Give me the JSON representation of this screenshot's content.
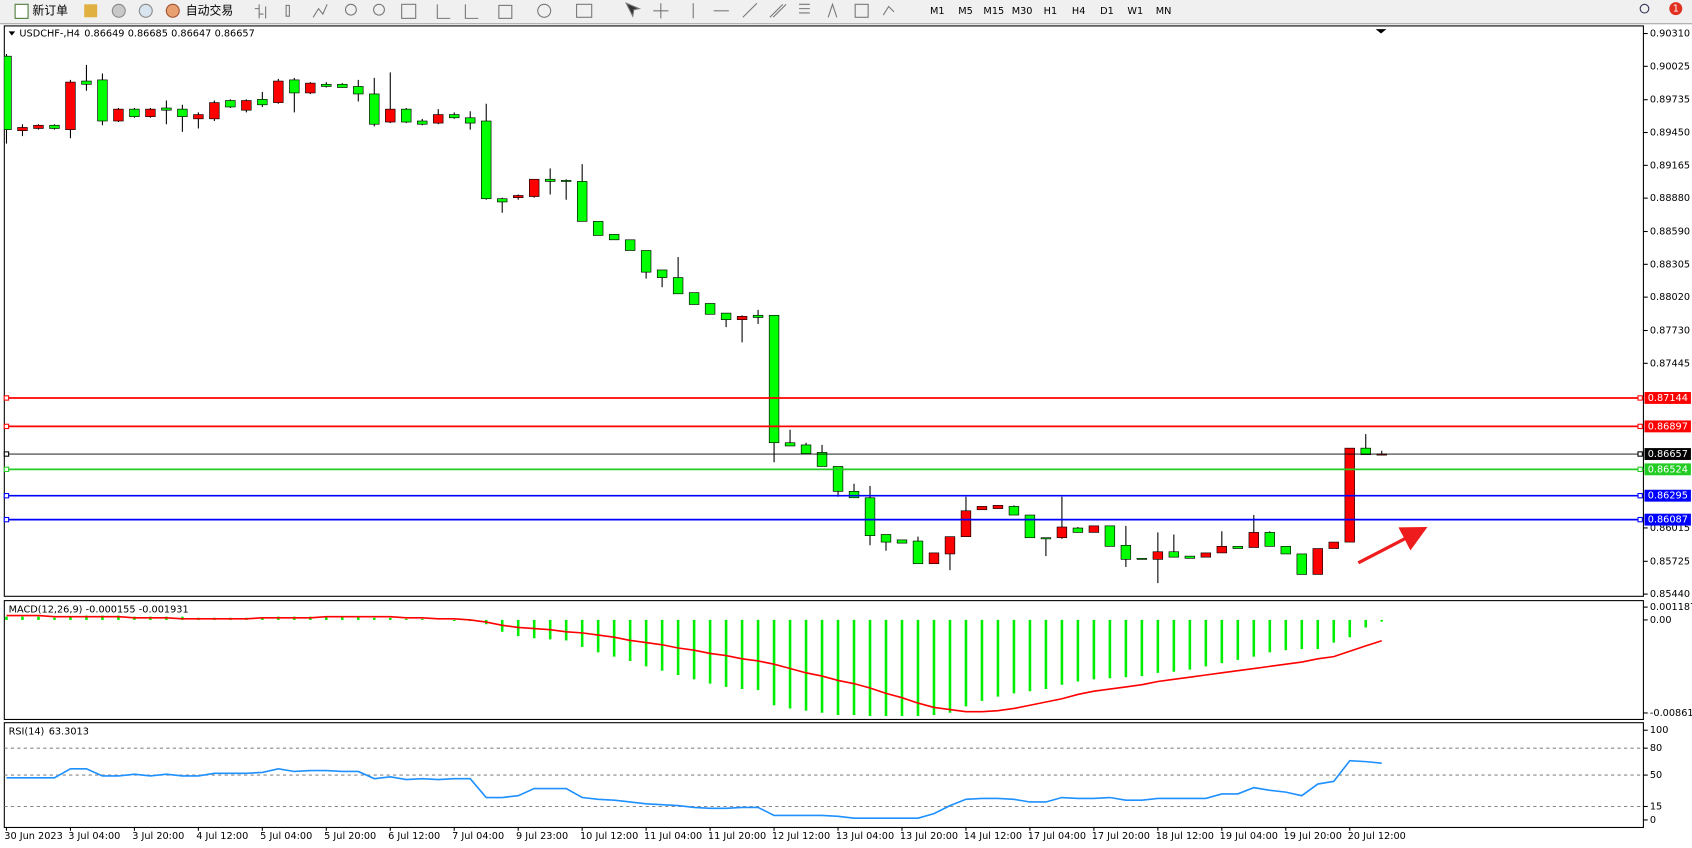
{
  "toolbar": {
    "new_order": "新订单",
    "auto_trading": "自动交易",
    "timeframes": [
      "M1",
      "M5",
      "M15",
      "M30",
      "H1",
      "H4",
      "D1",
      "W1",
      "MN"
    ],
    "notification": "1"
  },
  "chart_data": [
    {
      "type": "candlestick",
      "title": "USDCHF-,H4",
      "up_color": "#ff0000",
      "down_color": "#00ff00",
      "categories": [
        "30 Jun 2023",
        null,
        null,
        null,
        "3 Jul 04:00",
        null,
        null,
        null,
        "3 Jul 20:00",
        null,
        null,
        null,
        "4 Jul 12:00",
        null,
        null,
        null,
        "5 Jul 04:00",
        null,
        null,
        null,
        "5 Jul 20:00",
        null,
        null,
        null,
        "6 Jul 12:00",
        null,
        null,
        null,
        "7 Jul 04:00",
        null,
        null,
        null,
        "9 Jul 23:00",
        null,
        null,
        null,
        "10 Jul 12:00",
        null,
        null,
        null,
        "11 Jul 04:00",
        null,
        null,
        null,
        "11 Jul 20:00",
        null,
        null,
        null,
        "12 Jul 12:00",
        null,
        null,
        null,
        "13 Jul 04:00",
        null,
        null,
        null,
        "13 Jul 20:00",
        null,
        null,
        null,
        "14 Jul 12:00",
        null,
        null,
        null,
        "17 Jul 04:00",
        null,
        null,
        null,
        "17 Jul 20:00",
        null,
        null,
        null,
        "18 Jul 12:00",
        null,
        null,
        null,
        "19 Jul 04:00",
        null,
        null,
        null,
        "19 Jul 20:00",
        null,
        null,
        null,
        "20 Jul 12:00",
        null,
        null
      ],
      "open": [
        0.90113,
        0.89466,
        0.89485,
        0.89513,
        0.89475,
        0.89897,
        0.89907,
        0.8955,
        0.89653,
        0.89588,
        0.89663,
        0.89653,
        0.89569,
        0.89569,
        0.89728,
        0.89644,
        0.89738,
        0.8971,
        0.89907,
        0.89794,
        0.89869,
        0.89869,
        0.8985,
        0.89785,
        0.89541,
        0.89653,
        0.8955,
        0.89532,
        0.89606,
        0.89578,
        0.8955,
        0.88875,
        0.88884,
        0.88894,
        0.89044,
        0.89034,
        0.89025,
        0.88678,
        0.88565,
        0.88518,
        0.88425,
        0.88256,
        0.8819,
        0.88059,
        0.87965,
        0.87881,
        0.87824,
        0.87862,
        0.87862,
        0.86755,
        0.86736,
        0.86671,
        0.86549,
        0.86333,
        0.86277,
        0.85958,
        0.85911,
        0.85901,
        0.85704,
        0.85789,
        0.85939,
        0.86173,
        0.86183,
        0.86202,
        0.86127,
        0.8593,
        0.8593,
        0.86014,
        0.85976,
        0.86033,
        0.85864,
        0.85751,
        0.85742,
        0.85808,
        0.8577,
        0.85761,
        0.85798,
        0.85855,
        0.85845,
        0.85976,
        0.85855,
        0.85789,
        0.85611,
        0.85836,
        0.85892,
        0.86708,
        0.86649
      ],
      "high": [
        0.90132,
        0.89522,
        0.89522,
        0.89522,
        0.89907,
        0.90038,
        0.89963,
        0.89663,
        0.89663,
        0.89663,
        0.89728,
        0.89691,
        0.89625,
        0.89728,
        0.89738,
        0.89738,
        0.89803,
        0.89916,
        0.89925,
        0.89888,
        0.89888,
        0.89879,
        0.89907,
        0.89925,
        0.89972,
        0.89663,
        0.89569,
        0.89653,
        0.89625,
        0.89635,
        0.897,
        0.88884,
        0.88912,
        0.89044,
        0.89138,
        0.89044,
        0.89175,
        0.88678,
        0.88565,
        0.88518,
        0.88425,
        0.88256,
        0.88368,
        0.88059,
        0.87965,
        0.87881,
        0.87862,
        0.87909,
        0.87862,
        0.86868,
        0.86755,
        0.86736,
        0.86549,
        0.86399,
        0.8638,
        0.85958,
        0.85911,
        0.85939,
        0.85798,
        0.85939,
        0.86286,
        0.86202,
        0.86211,
        0.86211,
        0.86127,
        0.8593,
        0.86286,
        0.86023,
        0.86033,
        0.86033,
        0.86033,
        0.85751,
        0.85976,
        0.85958,
        0.8577,
        0.85798,
        0.85986,
        0.85855,
        0.86127,
        0.85986,
        0.85855,
        0.85789,
        0.85836,
        0.85892,
        0.86708,
        0.8683,
        0.86685
      ],
      "low": [
        0.89353,
        0.89419,
        0.89475,
        0.89475,
        0.894,
        0.89813,
        0.89513,
        0.89541,
        0.89578,
        0.89578,
        0.89522,
        0.89456,
        0.89485,
        0.8955,
        0.89663,
        0.89625,
        0.89672,
        0.897,
        0.89625,
        0.89785,
        0.89841,
        0.89841,
        0.89719,
        0.89503,
        0.89532,
        0.89532,
        0.89513,
        0.89522,
        0.89569,
        0.89475,
        0.88866,
        0.88753,
        0.88866,
        0.88884,
        0.88912,
        0.88866,
        0.88678,
        0.88556,
        0.88518,
        0.88425,
        0.88181,
        0.88106,
        0.88049,
        0.87956,
        0.87871,
        0.87759,
        0.87627,
        0.87787,
        0.86586,
        0.86727,
        0.86661,
        0.86549,
        0.86286,
        0.86277,
        0.85864,
        0.85817,
        0.85883,
        0.85704,
        0.85704,
        0.85648,
        0.85939,
        0.86173,
        0.86183,
        0.86127,
        0.8593,
        0.8577,
        0.8592,
        0.85976,
        0.85976,
        0.85855,
        0.85676,
        0.85742,
        0.85536,
        0.85761,
        0.85751,
        0.85761,
        0.85798,
        0.85836,
        0.85845,
        0.85855,
        0.85789,
        0.85611,
        0.85611,
        0.85836,
        0.85892,
        0.86652,
        0.86647
      ],
      "close": [
        0.89475,
        0.89494,
        0.89513,
        0.89485,
        0.89888,
        0.89869,
        0.8955,
        0.89653,
        0.89588,
        0.89653,
        0.89644,
        0.89588,
        0.89606,
        0.8971,
        0.89672,
        0.89728,
        0.89691,
        0.89897,
        0.89794,
        0.89879,
        0.8985,
        0.89841,
        0.89785,
        0.89522,
        0.89653,
        0.89541,
        0.89522,
        0.89606,
        0.89578,
        0.89532,
        0.88875,
        0.88847,
        0.88903,
        0.89044,
        0.89025,
        0.89025,
        0.88678,
        0.88556,
        0.88518,
        0.88425,
        0.88237,
        0.8819,
        0.88049,
        0.87956,
        0.87871,
        0.87824,
        0.87853,
        0.87843,
        0.86755,
        0.86727,
        0.86661,
        0.86549,
        0.86333,
        0.86277,
        0.85948,
        0.85892,
        0.85883,
        0.85704,
        0.85798,
        0.85939,
        0.86164,
        0.86202,
        0.86211,
        0.86127,
        0.8593,
        0.8592,
        0.86023,
        0.85976,
        0.86033,
        0.85855,
        0.85742,
        0.85742,
        0.85808,
        0.85761,
        0.85751,
        0.85798,
        0.85855,
        0.85836,
        0.85976,
        0.85855,
        0.85789,
        0.85611,
        0.85836,
        0.85892,
        0.86708,
        0.86652,
        0.86657
      ],
      "ylim": [
        0.85421,
        0.90376
      ],
      "yticks": [
        {
          "value": 0.9031,
          "label": "0.90310"
        },
        0.90025,
        0.89735,
        {
          "value": 0.8945,
          "label": "0.89450"
        },
        0.89165,
        {
          "value": 0.8888,
          "label": "0.88880"
        },
        {
          "value": 0.8859,
          "label": "0.88590"
        },
        0.88305,
        {
          "value": 0.8802,
          "label": "0.88020"
        },
        {
          "value": 0.8773,
          "label": "0.87730"
        },
        0.87445,
        0.86015,
        0.85725,
        {
          "value": 0.8544,
          "label": "0.85440"
        }
      ],
      "levels": [
        {
          "value": 0.87144,
          "color": "#ff0000"
        },
        {
          "value": 0.86897,
          "color": "#ff0000"
        },
        {
          "value": 0.86657,
          "color": "#000000"
        },
        {
          "value": 0.86524,
          "color": "#22cc22"
        },
        {
          "value": 0.86295,
          "color": "#0000ff"
        },
        {
          "value": 0.86087,
          "color": "#0000ff"
        }
      ]
    },
    {
      "type": "macd",
      "title": "MACD(12,26,9)",
      "ylim": [
        -0.009215,
        0.001787
      ],
      "yticks": [
        0.001187,
        {
          "value": 0,
          "label": "0.00"
        },
        -0.008615
      ],
      "series": [
        {
          "name": "MACD",
          "color": "#00ee00",
          "values": [
            0.0003,
            0.0003,
            0.0003,
            0.0002,
            0.0003,
            0.0004,
            0.0004,
            0.0004,
            0.0003,
            0.0003,
            0.0003,
            0.0003,
            0.0002,
            0.0002,
            0.0002,
            0.0002,
            0.0002,
            0.0003,
            0.0003,
            0.0003,
            0.0003,
            0.0003,
            0.0003,
            0.0002,
            0.0002,
            0.0001,
            0.0001,
            0,
            -0.0001,
            -0.0001,
            -0.0004,
            -0.0011,
            -0.0015,
            -0.0017,
            -0.0018,
            -0.0019,
            -0.0025,
            -0.003,
            -0.0034,
            -0.0038,
            -0.0043,
            -0.0047,
            -0.0051,
            -0.0055,
            -0.0059,
            -0.0062,
            -0.0064,
            -0.0065,
            -0.0079,
            -0.0082,
            -0.0084,
            -0.0086,
            -0.0088,
            -0.0088,
            -0.0089,
            -0.0089,
            -0.0089,
            -0.0089,
            -0.0088,
            -0.0086,
            -0.008,
            -0.0075,
            -0.0071,
            -0.0068,
            -0.0066,
            -0.0064,
            -0.006,
            -0.0057,
            -0.0055,
            -0.0054,
            -0.0053,
            -0.0052,
            -0.0049,
            -0.0048,
            -0.0046,
            -0.0043,
            -0.004,
            -0.0037,
            -0.0034,
            -0.003,
            -0.0028,
            -0.0027,
            -0.0027,
            -0.0021,
            -0.0016,
            -0.0007,
            -0.000155
          ]
        },
        {
          "name": "Signal",
          "color": "#ff0000",
          "values": [
            0.0004,
            0.0004,
            0.0004,
            0.0003,
            0.0003,
            0.0003,
            0.0003,
            0.0003,
            0.0002,
            0.0002,
            0.0002,
            0.0001,
            0.0001,
            0.0001,
            0.0001,
            0.0001,
            0.0002,
            0.0002,
            0.0002,
            0.0002,
            0.0003,
            0.0003,
            0.0003,
            0.0003,
            0.0003,
            0.0002,
            0.0002,
            0.0001,
            0.0001,
            0,
            -0.0002,
            -0.0005,
            -0.0007,
            -0.0008,
            -0.0009,
            -0.0011,
            -0.0012,
            -0.0014,
            -0.0016,
            -0.0019,
            -0.0021,
            -0.0023,
            -0.0026,
            -0.0028,
            -0.0031,
            -0.0033,
            -0.0036,
            -0.0038,
            -0.0041,
            -0.0045,
            -0.0049,
            -0.0052,
            -0.0056,
            -0.0059,
            -0.0063,
            -0.0068,
            -0.0072,
            -0.0077,
            -0.0081,
            -0.0083,
            -0.0085,
            -0.0085,
            -0.0084,
            -0.0082,
            -0.0079,
            -0.0076,
            -0.0073,
            -0.0069,
            -0.0066,
            -0.0064,
            -0.0062,
            -0.006,
            -0.0057,
            -0.0055,
            -0.0053,
            -0.0051,
            -0.0049,
            -0.0047,
            -0.0045,
            -0.0043,
            -0.0041,
            -0.0039,
            -0.0036,
            -0.0034,
            -0.0029,
            -0.0024,
            -0.001931
          ]
        }
      ]
    },
    {
      "type": "line",
      "title": "RSI(14)",
      "ylim": [
        -8.4,
        108.4
      ],
      "yticks": [
        100,
        80,
        50,
        15,
        0
      ],
      "series": [
        {
          "name": "RSI",
          "color": "#1e90ff",
          "values": [
            47,
            47,
            47,
            47,
            57,
            57,
            49,
            49,
            51,
            49,
            51,
            49,
            49,
            52,
            52,
            52,
            53,
            57,
            54,
            55,
            55,
            54,
            54,
            46,
            48,
            45,
            46,
            45,
            46,
            46,
            25,
            25,
            27,
            35,
            35,
            35,
            25,
            23,
            22,
            20,
            18,
            17,
            16,
            14,
            13,
            13,
            14,
            14,
            5,
            5,
            5,
            5,
            4,
            2,
            2,
            2,
            2,
            2,
            7,
            16,
            23,
            24,
            24,
            23,
            20,
            20,
            25,
            24,
            24,
            25,
            22,
            22,
            24,
            24,
            24,
            24,
            29,
            29,
            36,
            33,
            31,
            27,
            40,
            43,
            66,
            65,
            63.3013
          ]
        }
      ]
    }
  ]
}
